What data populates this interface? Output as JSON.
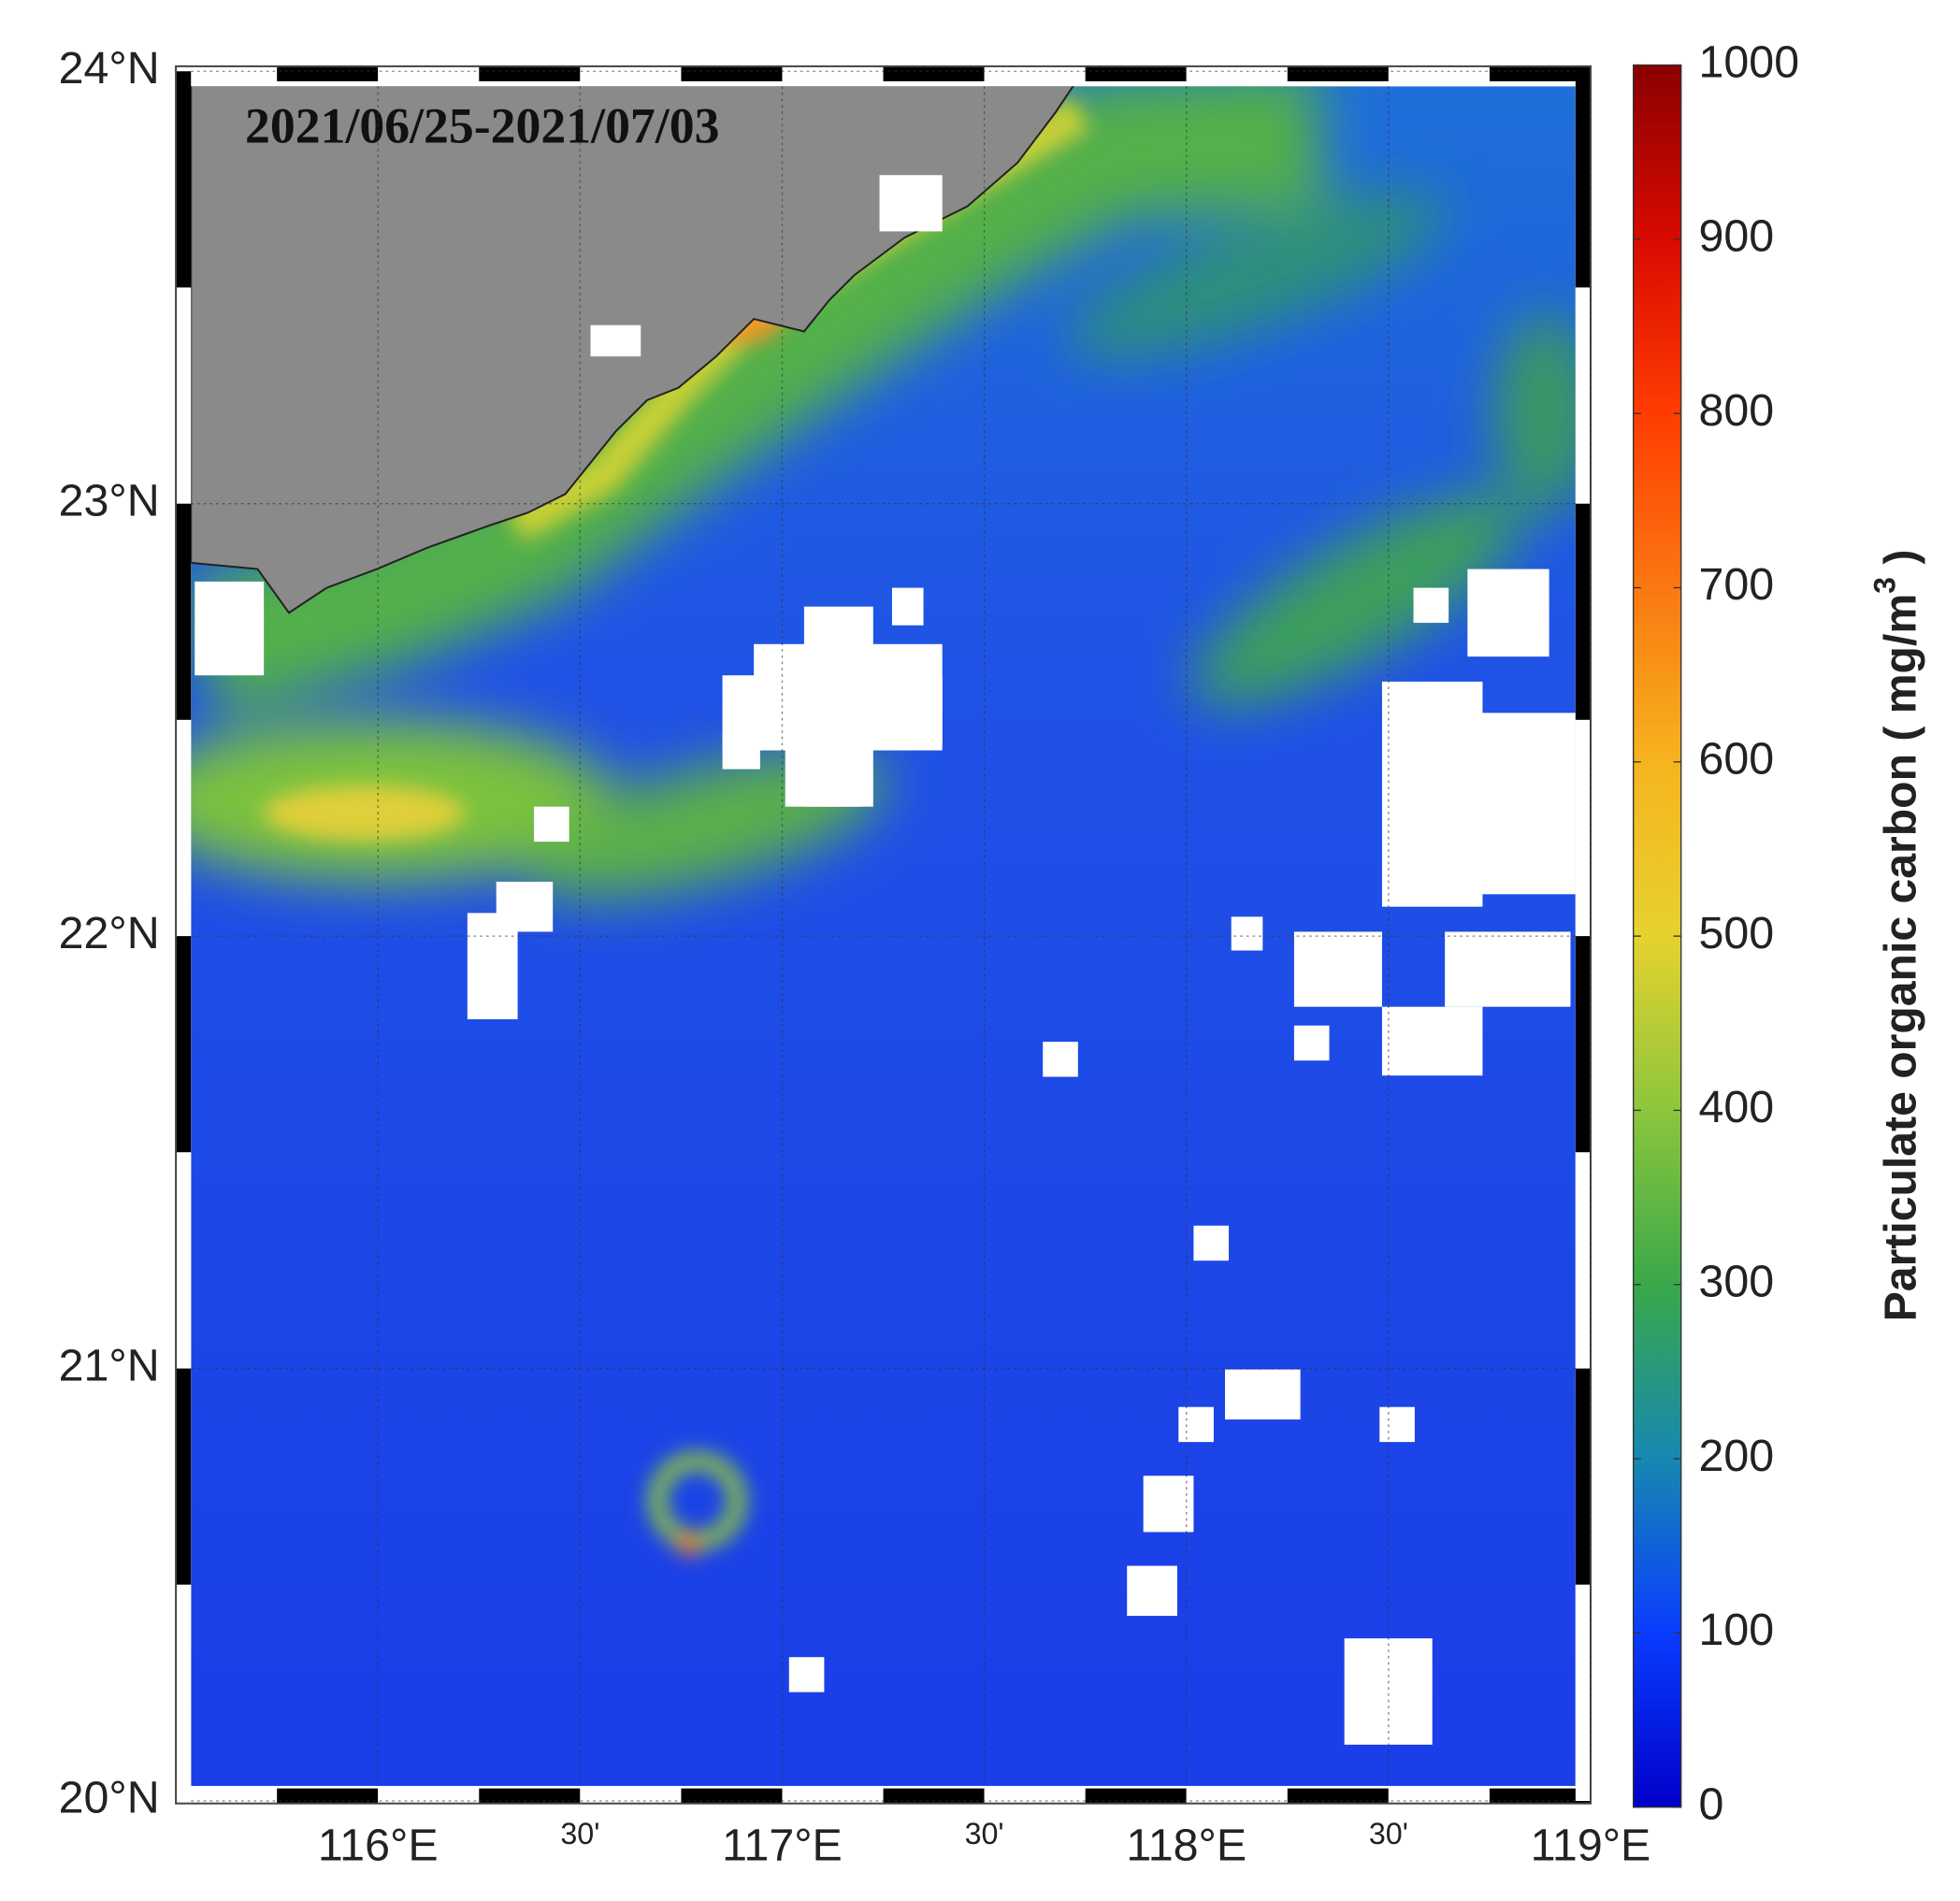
{
  "map": {
    "title": "2021/06/25-2021/07/03",
    "xlim": [
      115.5,
      119
    ],
    "ylim": [
      20,
      24
    ],
    "lat_ticks": [
      {
        "value": 24,
        "label": "24°N"
      },
      {
        "value": 23,
        "label": "23°N"
      },
      {
        "value": 22,
        "label": "22°N"
      },
      {
        "value": 21,
        "label": "21°N"
      },
      {
        "value": 20,
        "label": "20°N"
      }
    ],
    "lon_ticks": [
      {
        "value": 116,
        "label": "116°E"
      },
      {
        "value": 116.5,
        "label": "30'"
      },
      {
        "value": 117,
        "label": "117°E"
      },
      {
        "value": 117.5,
        "label": "30'"
      },
      {
        "value": 118,
        "label": "118°E"
      },
      {
        "value": 118.5,
        "label": "30'"
      },
      {
        "value": 119,
        "label": "119°E"
      }
    ]
  },
  "colorbar": {
    "label": {
      "text": "Particulate organic carbon ( mg/m",
      "sup": "3",
      "end": " )"
    },
    "lim": [
      0,
      1000
    ],
    "ticks": [
      0,
      100,
      200,
      300,
      400,
      500,
      600,
      700,
      800,
      900,
      1000
    ]
  }
}
